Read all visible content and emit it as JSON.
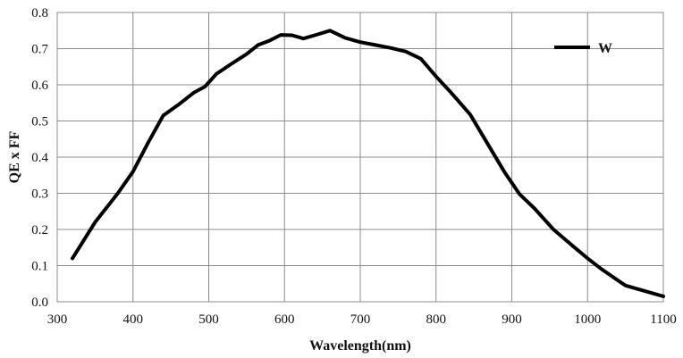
{
  "chart_data": {
    "type": "line",
    "title": "",
    "xlabel": "Wavelength(nm)",
    "ylabel": "QE x FF",
    "xlim": [
      300,
      1100
    ],
    "ylim": [
      0,
      0.8
    ],
    "x_ticks": [
      "300",
      "400",
      "500",
      "600",
      "700",
      "800",
      "900",
      "1000",
      "1100"
    ],
    "y_ticks": [
      "0.0",
      "0.1",
      "0.2",
      "0.3",
      "0.4",
      "0.5",
      "0.6",
      "0.7",
      "0.8"
    ],
    "grid": true,
    "legend_position": "top-right",
    "series": [
      {
        "name": "W",
        "color": "#000000",
        "x": [
          320,
          350,
          380,
          400,
          420,
          440,
          460,
          480,
          495,
          510,
          530,
          550,
          565,
          580,
          595,
          610,
          625,
          640,
          660,
          680,
          700,
          720,
          740,
          760,
          780,
          800,
          820,
          845,
          870,
          890,
          910,
          930,
          955,
          980,
          1000,
          1020,
          1050,
          1080,
          1100
        ],
        "y": [
          0.12,
          0.22,
          0.3,
          0.36,
          0.44,
          0.515,
          0.545,
          0.578,
          0.595,
          0.63,
          0.658,
          0.685,
          0.71,
          0.722,
          0.738,
          0.737,
          0.728,
          0.737,
          0.75,
          0.73,
          0.718,
          0.71,
          0.702,
          0.692,
          0.672,
          0.623,
          0.578,
          0.518,
          0.43,
          0.36,
          0.298,
          0.258,
          0.2,
          0.155,
          0.12,
          0.088,
          0.045,
          0.027,
          0.015
        ]
      }
    ]
  }
}
